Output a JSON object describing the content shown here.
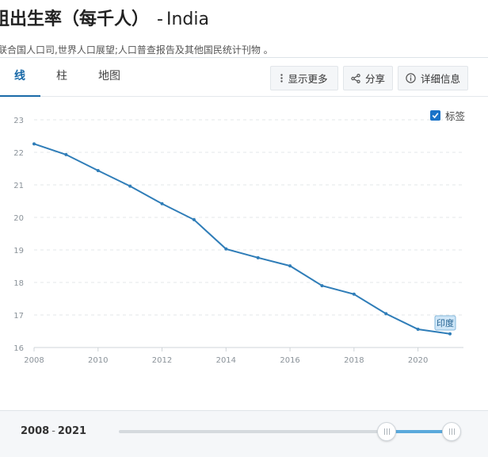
{
  "header": {
    "title": "粗出生率（每千人）",
    "separator": "-",
    "country": "India",
    "source": "联合国人口司,世界人口展望;人口普查报告及其他国民统计刊物 。"
  },
  "tabs": [
    {
      "label": "线",
      "active": true
    },
    {
      "label": "柱",
      "active": false
    },
    {
      "label": "地图",
      "active": false
    }
  ],
  "toolbar": {
    "more_label": "显示更多",
    "share_label": "分享",
    "details_label": "详细信息"
  },
  "labels_toggle": {
    "label": "标签",
    "checked": true
  },
  "footer": {
    "range_start": "2008",
    "range_sep": "-",
    "range_end": "2021",
    "slider_min": 0.805,
    "slider_max": 1.0
  },
  "colors": {
    "line": "#2f7db8",
    "accent": "#1a6aa8",
    "label_bg": "#cfe6f7"
  },
  "chart_data": {
    "type": "line",
    "title": "",
    "xlabel": "",
    "ylabel": "",
    "x": [
      2008,
      2009,
      2010,
      2011,
      2012,
      2013,
      2014,
      2015,
      2016,
      2017,
      2018,
      2019,
      2020,
      2021
    ],
    "series": [
      {
        "name": "印度",
        "values": [
          22.26,
          21.93,
          21.44,
          20.96,
          20.42,
          19.93,
          19.03,
          18.76,
          18.51,
          17.9,
          17.64,
          17.04,
          16.56,
          16.42
        ]
      }
    ],
    "xticks": [
      2008,
      2010,
      2012,
      2014,
      2016,
      2018,
      2020
    ],
    "yticks": [
      16,
      17,
      18,
      19,
      20,
      21,
      22,
      23
    ],
    "xlim": [
      2008,
      2021
    ],
    "ylim": [
      16,
      23
    ],
    "grid": "horizontal-dashed"
  }
}
